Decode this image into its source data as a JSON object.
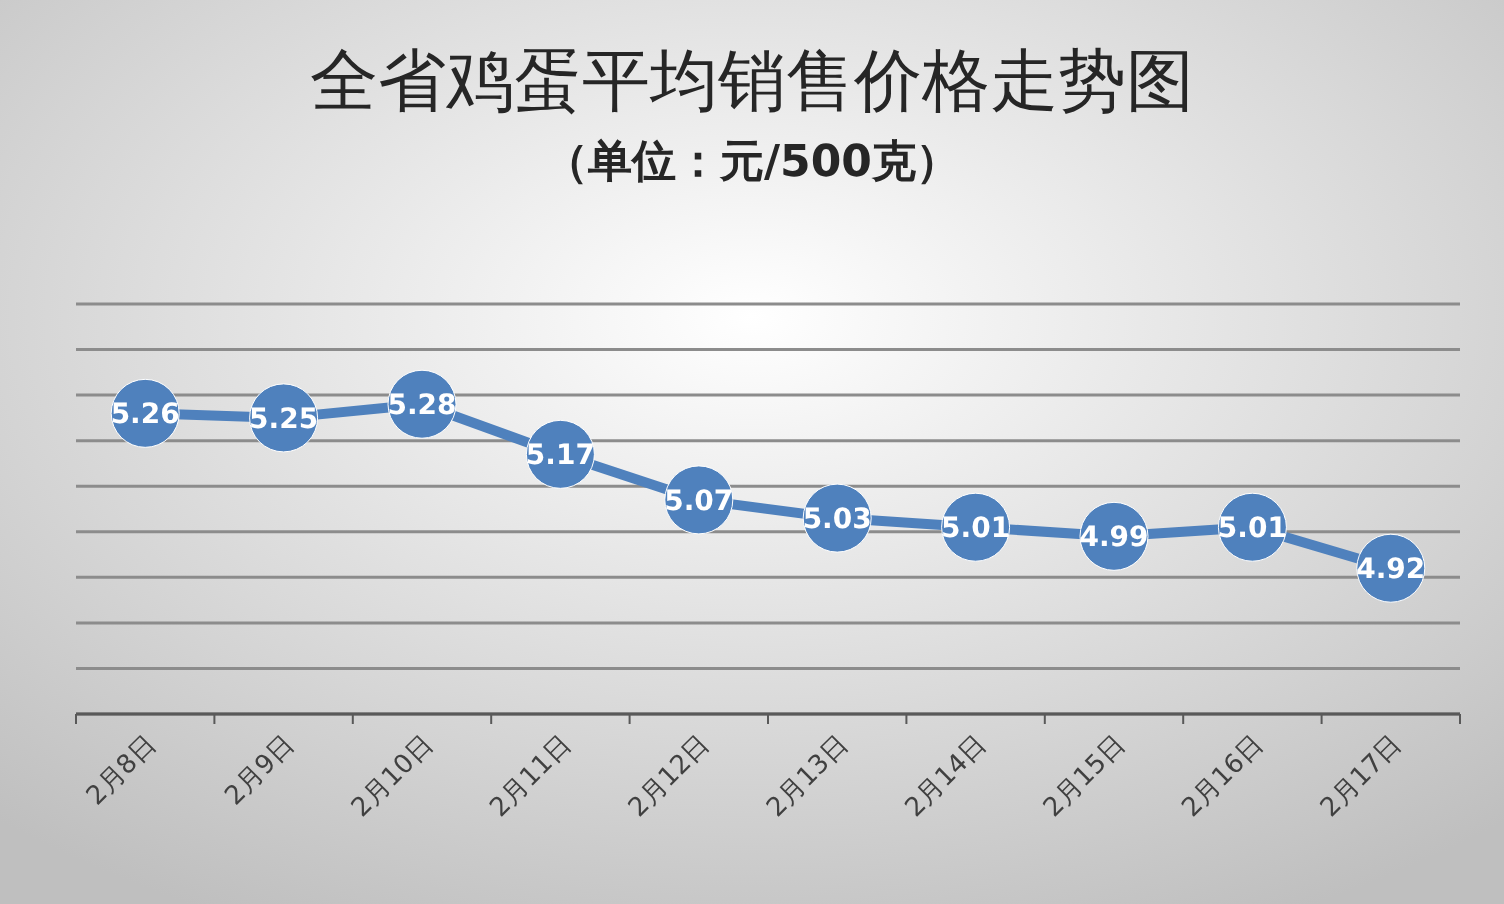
{
  "chart_data": {
    "type": "line",
    "title": "全省鸡蛋平均销售价格走势图",
    "subtitle": "（单位：元/500克）",
    "categories": [
      "2月8日",
      "2月9日",
      "2月10日",
      "2月11日",
      "2月12日",
      "2月13日",
      "2月14日",
      "2月15日",
      "2月16日",
      "2月17日"
    ],
    "series": [
      {
        "color": "#4f81bd",
        "values": [
          5.26,
          5.25,
          5.28,
          5.17,
          5.07,
          5.03,
          5.01,
          4.99,
          5.01,
          4.92
        ]
      }
    ],
    "ylim": [
      4.6,
      5.5
    ],
    "yticks": [
      {
        "value": 4.6,
        "label": null
      },
      {
        "value": 4.7,
        "label": null
      },
      {
        "value": 4.8,
        "label": null
      },
      {
        "value": 4.9,
        "label": null
      },
      {
        "value": 5.0,
        "label": null
      },
      {
        "value": 5.1,
        "label": null
      },
      {
        "value": 5.2,
        "label": null
      },
      {
        "value": 5.3,
        "label": null
      },
      {
        "value": 5.4,
        "label": null
      },
      {
        "value": 5.5,
        "label": null
      }
    ],
    "tick_labels": "x",
    "grid": "y",
    "marker": "circle",
    "line_style": "solid",
    "data_labels": true
  }
}
